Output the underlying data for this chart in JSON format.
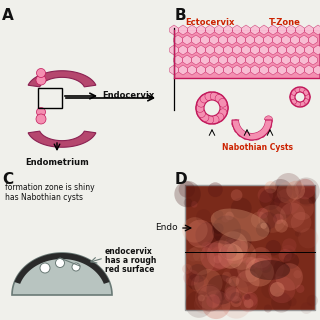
{
  "bg_color": "#f0f0eb",
  "pink_fill": "#f48fb1",
  "pink_light": "#f9c0d5",
  "pink_border": "#c2185b",
  "dark_pink": "#ad1457",
  "mauve_dark": "#8b2252",
  "mauve": "#b5476e",
  "gray_fill": "#b8c4c0",
  "gray_dark": "#6a7a76",
  "dark_rim": "#2a2a2a",
  "text_red": "#cc2200",
  "text_dark": "#111111",
  "label_endocervix": "Endocervix",
  "label_endometrium": "Endometrium",
  "label_ectocervix": "Ectocervix",
  "label_tzone": "T-Zone",
  "label_nabothian": "Nabothian Cysts",
  "label_endo": "Endo",
  "text_C1": "formation zone is shiny",
  "text_C2": "has Nabothian cysts",
  "text_C3_1": "endocervix",
  "text_C3_2": "has a rough",
  "text_C3_3": "red surface",
  "panel_B": "B",
  "panel_D": "D"
}
